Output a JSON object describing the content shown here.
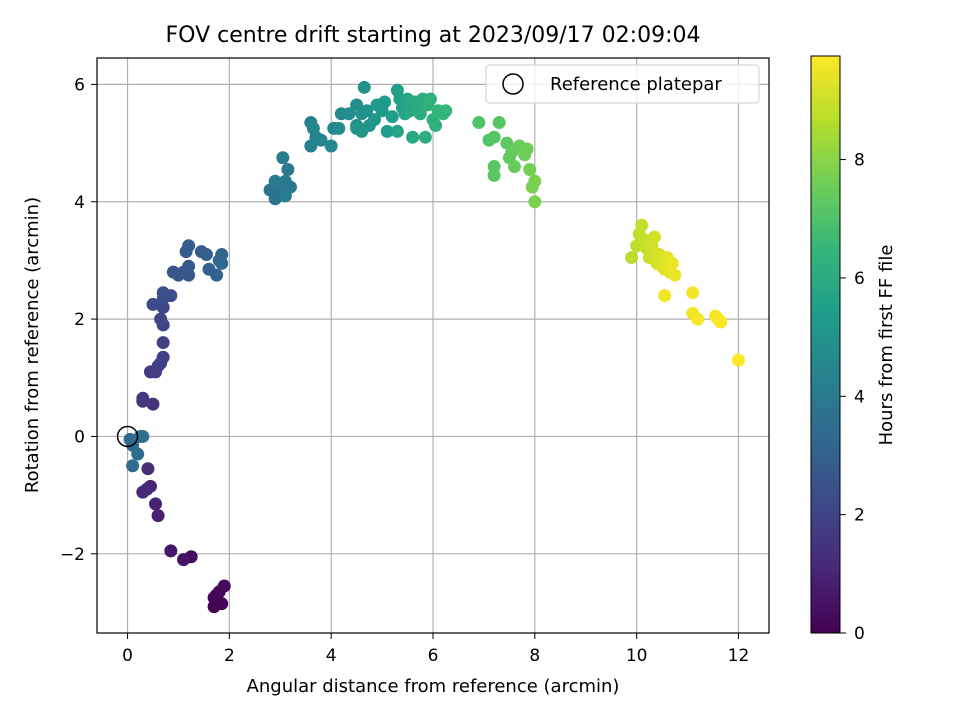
{
  "chart_data": {
    "type": "scatter",
    "title": "FOV centre drift starting at 2023/09/17 02:09:04",
    "xlabel": "Angular distance from reference (arcmin)",
    "ylabel": "Rotation from reference (arcmin)",
    "xlim": [
      -0.6,
      12.6
    ],
    "ylim": [
      -3.35,
      6.45
    ],
    "xticks": [
      0,
      2,
      4,
      6,
      8,
      10,
      12
    ],
    "yticks": [
      -2,
      0,
      2,
      4,
      6
    ],
    "xtick_labels": [
      "0",
      "2",
      "4",
      "6",
      "8",
      "10",
      "12"
    ],
    "ytick_labels": [
      "−2",
      "0",
      "2",
      "4",
      "6"
    ],
    "grid": true,
    "legend": {
      "placement": "top-right",
      "entries": [
        "Reference platepar"
      ]
    },
    "reference_point": {
      "x": 0,
      "y": 0
    },
    "colorbar": {
      "label": "Hours from first FF file",
      "range": [
        0,
        9.75
      ],
      "ticks": [
        0,
        2,
        4,
        6,
        8
      ],
      "tick_labels": [
        "0",
        "2",
        "4",
        "6",
        "8"
      ],
      "colormap": "viridis"
    },
    "colors": {
      "viridis": [
        "#440154",
        "#482878",
        "#3e4989",
        "#31688e",
        "#26828e",
        "#1f9e89",
        "#35b779",
        "#6ece58",
        "#b5de2b",
        "#fde725"
      ],
      "grid": "#b0b0b0",
      "reference_marker": "#000000"
    },
    "points": [
      [
        1.7,
        -2.9,
        0.0
      ],
      [
        1.85,
        -2.85,
        0.05
      ],
      [
        1.75,
        -2.7,
        0.1
      ],
      [
        1.7,
        -2.75,
        0.15
      ],
      [
        1.8,
        -2.65,
        0.2
      ],
      [
        1.9,
        -2.55,
        0.25
      ],
      [
        1.25,
        -2.05,
        0.4
      ],
      [
        1.1,
        -2.1,
        0.5
      ],
      [
        0.85,
        -1.95,
        0.6
      ],
      [
        0.6,
        -1.35,
        0.85
      ],
      [
        0.55,
        -1.15,
        0.9
      ],
      [
        0.45,
        -0.85,
        1.0
      ],
      [
        0.38,
        -0.9,
        1.05
      ],
      [
        0.3,
        -0.95,
        1.1
      ],
      [
        0.4,
        -0.55,
        1.2
      ],
      [
        0.5,
        0.55,
        1.45
      ],
      [
        0.3,
        0.6,
        1.5
      ],
      [
        0.3,
        0.65,
        1.55
      ],
      [
        0.45,
        1.1,
        1.7
      ],
      [
        0.55,
        1.1,
        1.75
      ],
      [
        0.6,
        1.2,
        1.8
      ],
      [
        0.65,
        1.25,
        1.85
      ],
      [
        0.7,
        1.35,
        1.9
      ],
      [
        0.7,
        1.6,
        1.95
      ],
      [
        0.7,
        1.9,
        2.05
      ],
      [
        0.65,
        2.0,
        2.1
      ],
      [
        0.7,
        2.2,
        2.15
      ],
      [
        0.5,
        2.25,
        2.2
      ],
      [
        0.7,
        2.35,
        2.3
      ],
      [
        0.85,
        2.4,
        2.35
      ],
      [
        0.7,
        2.45,
        2.4
      ],
      [
        0.9,
        2.8,
        2.55
      ],
      [
        1.0,
        2.75,
        2.6
      ],
      [
        1.1,
        2.8,
        2.65
      ],
      [
        1.2,
        2.75,
        2.7
      ],
      [
        1.2,
        2.9,
        2.75
      ],
      [
        1.15,
        3.15,
        2.8
      ],
      [
        1.2,
        3.25,
        2.85
      ],
      [
        1.45,
        3.15,
        2.9
      ],
      [
        1.55,
        3.1,
        2.95
      ],
      [
        1.6,
        2.85,
        3.0
      ],
      [
        1.75,
        2.75,
        3.05
      ],
      [
        1.8,
        3.0,
        3.1
      ],
      [
        1.85,
        3.1,
        3.15
      ],
      [
        1.85,
        2.95,
        3.2
      ],
      [
        0.05,
        -0.05,
        3.3
      ],
      [
        0.1,
        -0.15,
        3.35
      ],
      [
        0.2,
        -0.3,
        3.4
      ],
      [
        0.25,
        0.0,
        3.45
      ],
      [
        0.1,
        -0.5,
        3.5
      ],
      [
        0.3,
        0.0,
        3.55
      ],
      [
        2.8,
        4.2,
        3.65
      ],
      [
        2.9,
        4.05,
        3.7
      ],
      [
        2.95,
        4.15,
        3.75
      ],
      [
        3.0,
        4.3,
        3.8
      ],
      [
        3.05,
        4.2,
        3.85
      ],
      [
        3.1,
        4.35,
        3.9
      ],
      [
        3.15,
        4.55,
        3.95
      ],
      [
        3.2,
        4.25,
        4.0
      ],
      [
        3.05,
        4.75,
        4.05
      ],
      [
        2.9,
        4.35,
        4.1
      ],
      [
        3.1,
        4.1,
        4.15
      ],
      [
        3.6,
        4.95,
        4.25
      ],
      [
        3.6,
        5.35,
        4.3
      ],
      [
        3.7,
        5.1,
        4.35
      ],
      [
        3.8,
        5.05,
        4.4
      ],
      [
        3.65,
        5.25,
        4.45
      ],
      [
        4.0,
        4.95,
        4.55
      ],
      [
        4.05,
        5.25,
        4.6
      ],
      [
        4.15,
        5.25,
        4.65
      ],
      [
        4.2,
        5.5,
        4.7
      ],
      [
        4.35,
        5.5,
        4.75
      ],
      [
        4.5,
        5.65,
        4.8
      ],
      [
        4.5,
        5.3,
        4.85
      ],
      [
        4.6,
        5.5,
        4.9
      ],
      [
        4.65,
        5.95,
        4.95
      ],
      [
        4.7,
        5.55,
        5.0
      ],
      [
        4.5,
        5.25,
        5.05
      ],
      [
        4.6,
        5.2,
        5.1
      ],
      [
        4.75,
        5.3,
        5.15
      ],
      [
        4.85,
        5.4,
        5.2
      ],
      [
        4.9,
        5.65,
        5.25
      ],
      [
        5.0,
        5.55,
        5.3
      ],
      [
        5.05,
        5.7,
        5.35
      ],
      [
        5.1,
        5.2,
        5.4
      ],
      [
        5.2,
        5.45,
        5.45
      ],
      [
        5.3,
        5.9,
        5.5
      ],
      [
        5.35,
        5.75,
        5.55
      ],
      [
        5.4,
        5.6,
        5.6
      ],
      [
        5.3,
        5.2,
        5.65
      ],
      [
        5.45,
        5.5,
        5.7
      ],
      [
        5.5,
        5.75,
        5.75
      ],
      [
        5.55,
        5.55,
        5.8
      ],
      [
        5.6,
        5.1,
        5.85
      ],
      [
        5.65,
        5.7,
        5.9
      ],
      [
        5.7,
        5.6,
        5.95
      ],
      [
        5.75,
        5.5,
        6.0
      ],
      [
        5.8,
        5.75,
        6.05
      ],
      [
        5.85,
        5.1,
        6.1
      ],
      [
        5.9,
        5.65,
        6.15
      ],
      [
        5.95,
        5.75,
        6.2
      ],
      [
        6.0,
        5.4,
        6.25
      ],
      [
        6.05,
        5.3,
        6.3
      ],
      [
        6.1,
        5.55,
        6.35
      ],
      [
        6.2,
        5.5,
        6.4
      ],
      [
        6.25,
        5.55,
        6.45
      ],
      [
        6.9,
        5.35,
        7.0
      ],
      [
        7.1,
        5.05,
        7.05
      ],
      [
        7.2,
        5.1,
        7.1
      ],
      [
        7.3,
        5.35,
        7.15
      ],
      [
        7.2,
        4.6,
        7.2
      ],
      [
        7.2,
        4.45,
        7.25
      ],
      [
        7.45,
        5.0,
        7.3
      ],
      [
        7.5,
        4.75,
        7.35
      ],
      [
        7.55,
        4.85,
        7.4
      ],
      [
        7.6,
        4.6,
        7.45
      ],
      [
        7.7,
        4.95,
        7.5
      ],
      [
        7.8,
        4.8,
        7.55
      ],
      [
        7.85,
        4.9,
        7.6
      ],
      [
        7.9,
        4.55,
        7.65
      ],
      [
        7.95,
        4.25,
        7.7
      ],
      [
        8.0,
        4.35,
        7.75
      ],
      [
        8.0,
        4.0,
        7.8
      ],
      [
        9.9,
        3.05,
        8.7
      ],
      [
        10.0,
        3.25,
        8.75
      ],
      [
        10.05,
        3.45,
        8.8
      ],
      [
        10.1,
        3.6,
        8.85
      ],
      [
        10.15,
        3.35,
        8.9
      ],
      [
        10.2,
        3.2,
        8.95
      ],
      [
        10.25,
        3.05,
        9.0
      ],
      [
        10.3,
        3.25,
        9.05
      ],
      [
        10.35,
        3.4,
        9.1
      ],
      [
        10.4,
        2.95,
        9.15
      ],
      [
        10.45,
        3.1,
        9.2
      ],
      [
        10.5,
        2.9,
        9.25
      ],
      [
        10.55,
        2.85,
        9.3
      ],
      [
        10.6,
        3.05,
        9.35
      ],
      [
        10.65,
        2.8,
        9.4
      ],
      [
        10.7,
        2.95,
        9.45
      ],
      [
        10.75,
        2.75,
        9.5
      ],
      [
        10.55,
        2.4,
        9.55
      ],
      [
        11.1,
        2.45,
        9.6
      ],
      [
        11.1,
        2.1,
        9.62
      ],
      [
        11.2,
        2.0,
        9.64
      ],
      [
        11.55,
        2.05,
        9.66
      ],
      [
        11.6,
        2.0,
        9.68
      ],
      [
        11.65,
        1.95,
        9.7
      ],
      [
        12.0,
        1.3,
        9.75
      ]
    ]
  }
}
